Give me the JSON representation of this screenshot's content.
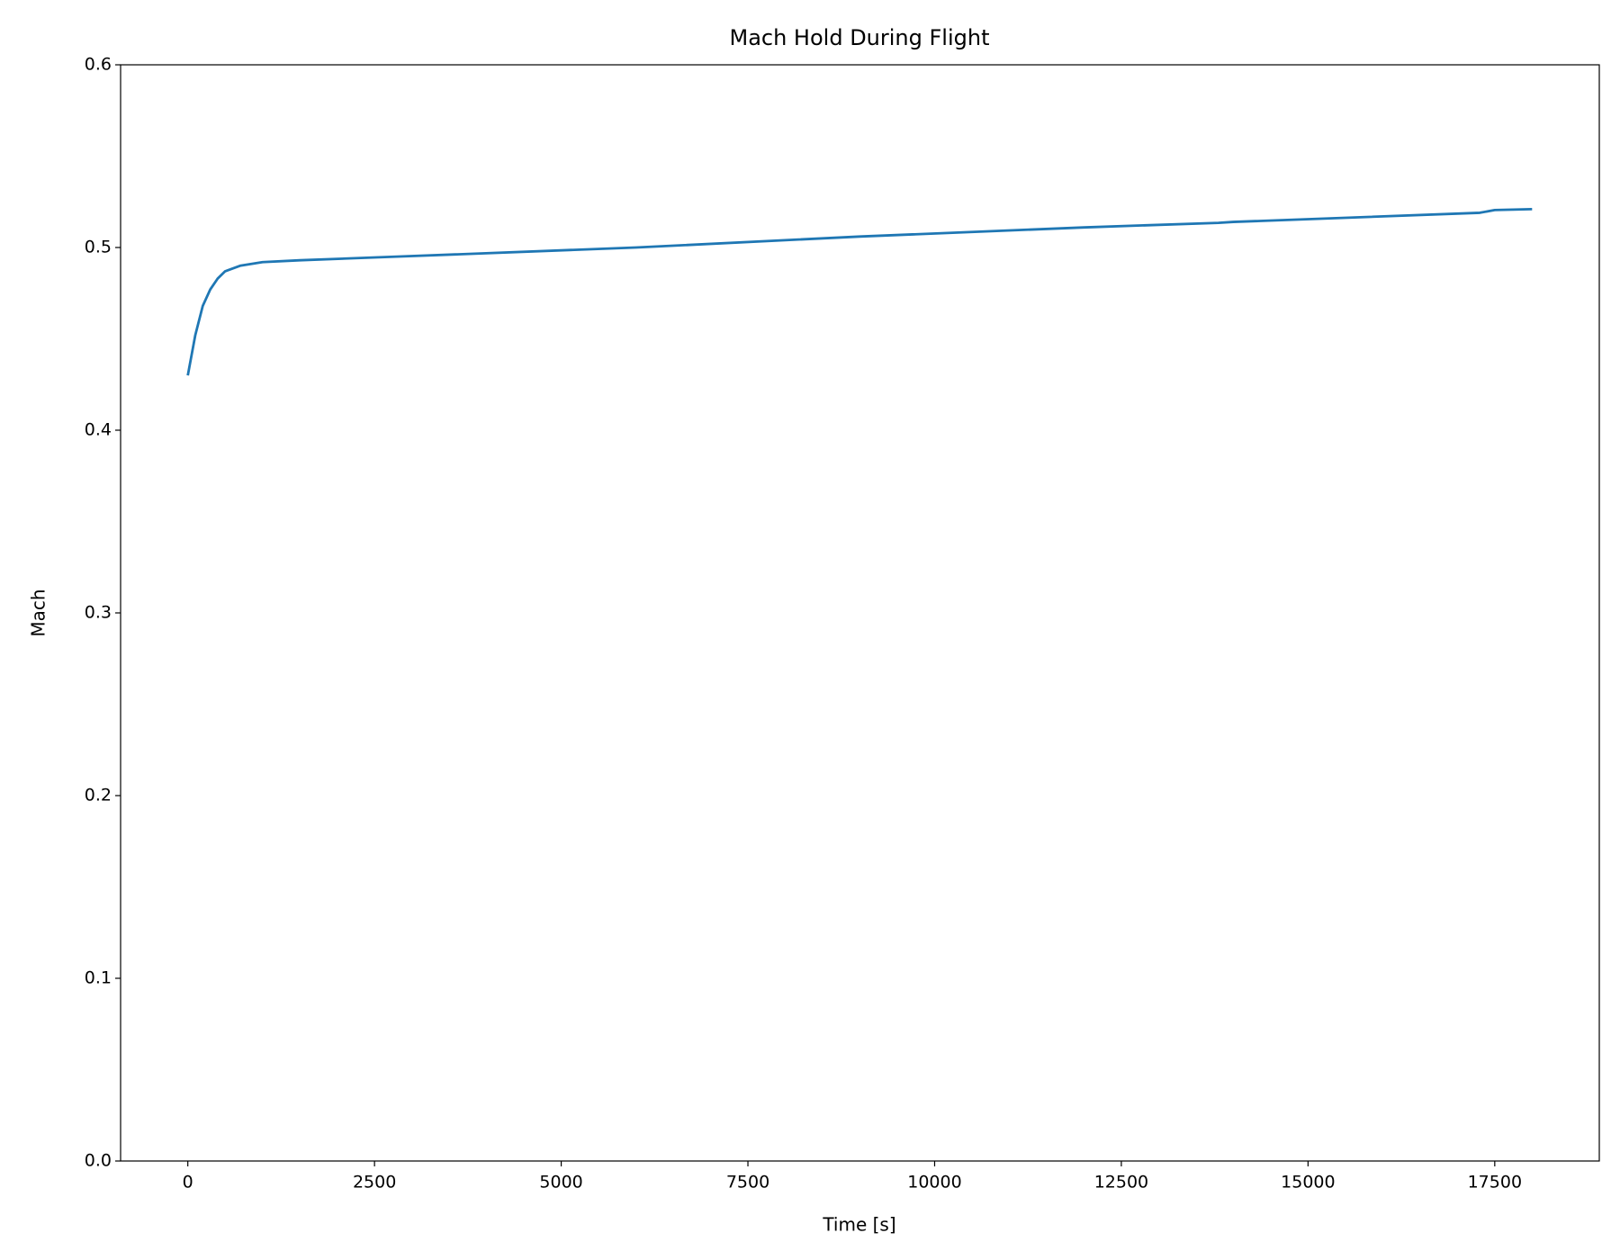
{
  "chart_data": {
    "type": "line",
    "title": "Mach Hold During Flight",
    "x_label": "Time [s]",
    "y_label": "Mach",
    "x": [
      0,
      100,
      200,
      300,
      400,
      500,
      700,
      1000,
      1500,
      2800,
      6000,
      9000,
      12000,
      13800,
      14000,
      17300,
      17500,
      18000
    ],
    "values": [
      0.43,
      0.452,
      0.468,
      0.477,
      0.483,
      0.487,
      0.49,
      0.492,
      0.493,
      0.495,
      0.5,
      0.506,
      0.511,
      0.5135,
      0.514,
      0.519,
      0.5205,
      0.521
    ],
    "color": "#1f77b4",
    "xlim": [
      -900,
      18900
    ],
    "xticks": [
      0,
      2500,
      5000,
      7500,
      10000,
      12500,
      15000,
      17500
    ],
    "ylim": [
      0,
      0.6
    ],
    "yticks": [
      {
        "value": 0,
        "label": "0.0"
      },
      0.1,
      0.2,
      0.3,
      0.4,
      0.5,
      0.6
    ],
    "grid": false
  }
}
